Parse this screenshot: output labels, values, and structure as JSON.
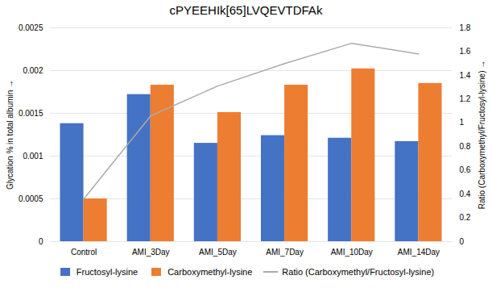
{
  "chart_data": {
    "type": "bar",
    "title": "cPYEEHIk[65]LVQEVTDFAk",
    "categories": [
      "Control",
      "AMI_3Day",
      "AMI_5Day",
      "AMI_7Day",
      "AMI_10Day",
      "AMI_14Day"
    ],
    "series": [
      {
        "name": "Fructosyl-lysine",
        "color": "#4472C4",
        "values": [
          0.00138,
          0.00172,
          0.00115,
          0.00124,
          0.00121,
          0.00117
        ]
      },
      {
        "name": "Carboxymethyl-lysine",
        "color": "#ED7D31",
        "values": [
          0.0005,
          0.00183,
          0.00151,
          0.00183,
          0.00202,
          0.00185
        ]
      },
      {
        "name": "Ratio (Carboxymethyl/Fructosyl-lysine)",
        "type": "line",
        "axis": "y2",
        "color": "#ABABAB",
        "values": [
          0.36,
          1.06,
          1.31,
          1.5,
          1.67,
          1.58
        ]
      }
    ],
    "ylabel": "Glycation % in total albumin",
    "y2label": "Ratio (Carboxymethyl/Fructosyl-lysine)",
    "ylim": [
      0,
      0.0025
    ],
    "yticks": [
      0,
      0.0005,
      0.001,
      0.0015,
      0.002,
      0.0025
    ],
    "y2lim": [
      0,
      1.8
    ],
    "y2ticks": [
      0,
      0.2,
      0.4,
      0.6,
      0.8,
      1,
      1.2,
      1.4,
      1.6,
      1.8
    ],
    "grid": true,
    "legend": "bottom"
  }
}
